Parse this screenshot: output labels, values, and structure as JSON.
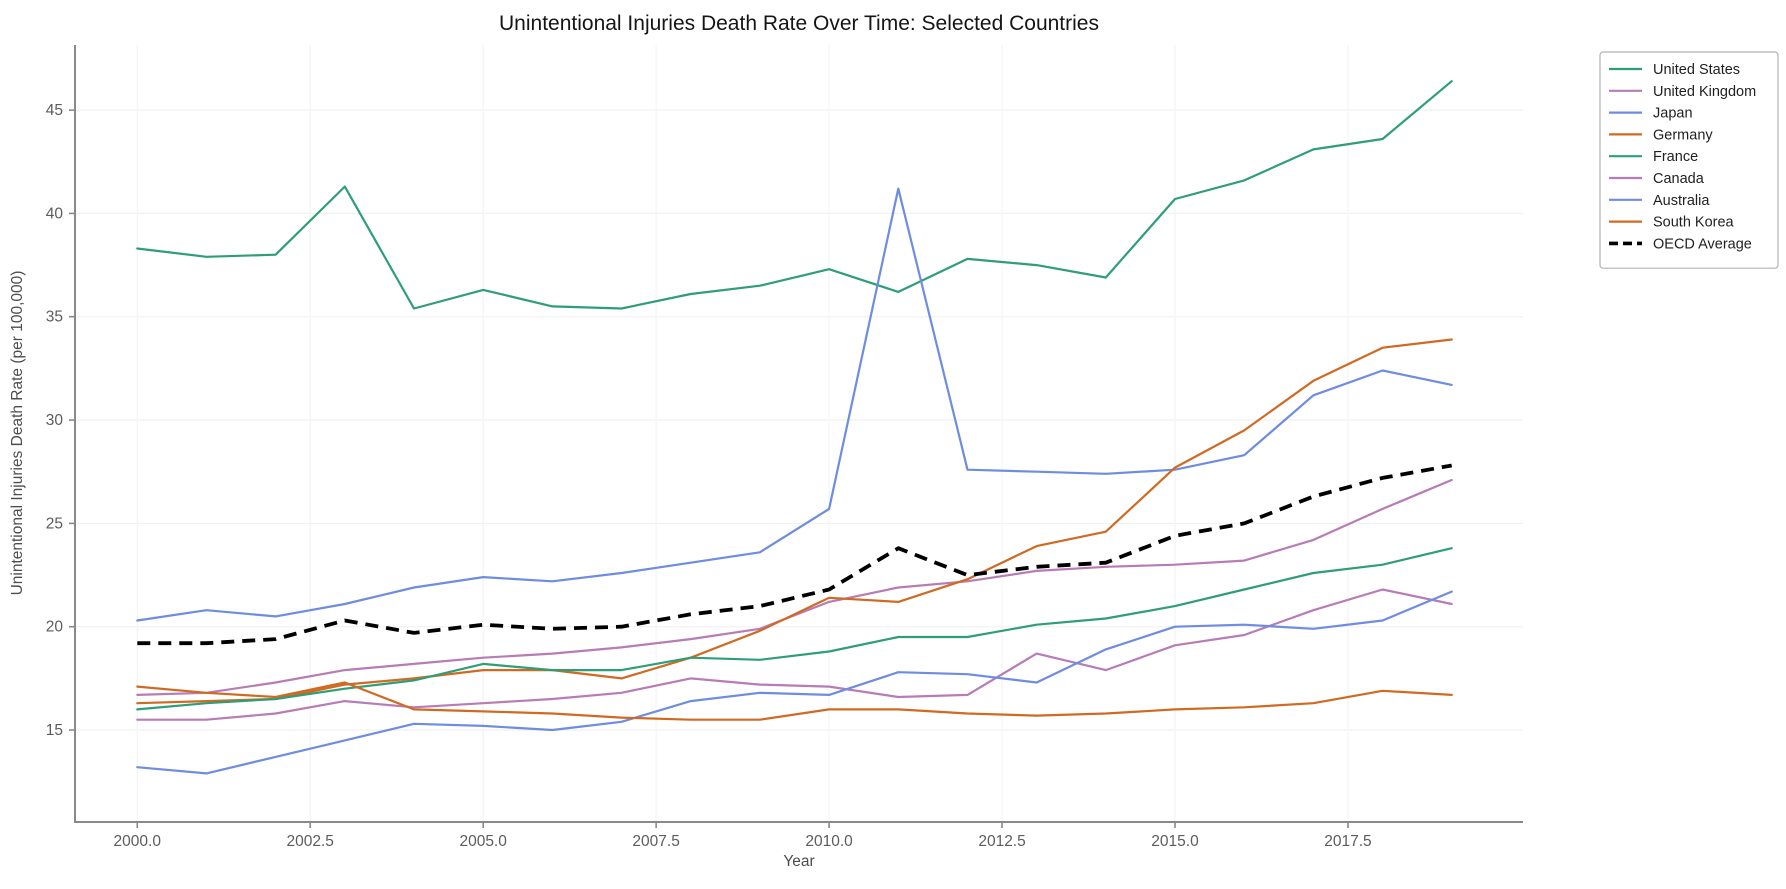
{
  "chart_data": {
    "type": "line",
    "title": "Unintentional Injuries Death Rate Over Time: Selected Countries",
    "xlabel": "Year",
    "ylabel": "Unintentional Injuries Death Rate (per 100,000)",
    "grid": true,
    "legend_position": "upper-right-outside",
    "xlim": [
      1999.1,
      2020.03
    ],
    "ylim": [
      10.55,
      48.15
    ],
    "yticks": [
      15,
      20,
      25,
      30,
      35,
      40,
      45
    ],
    "xticks": {
      "values": [
        2000,
        2002.5,
        2005,
        2007.5,
        2010,
        2012.5,
        2015,
        2017.5
      ],
      "labels": [
        "2000.0",
        "2002.5",
        "2005.0",
        "2007.5",
        "2010.0",
        "2012.5",
        "2015.0",
        "2017.5"
      ]
    },
    "x": [
      2000,
      2001,
      2002,
      2003,
      2004,
      2005,
      2006,
      2007,
      2008,
      2009,
      2010,
      2011,
      2012,
      2013,
      2014,
      2015,
      2016,
      2017,
      2018,
      2019
    ],
    "series": [
      {
        "name": "United States",
        "color": "#2f9e77",
        "dash": false,
        "values": [
          38.3,
          37.9,
          38.0,
          41.3,
          35.4,
          36.3,
          35.5,
          35.4,
          36.1,
          36.5,
          37.3,
          36.2,
          37.8,
          37.5,
          36.9,
          40.7,
          41.6,
          43.1,
          43.6,
          46.4
        ]
      },
      {
        "name": "United Kingdom",
        "color": "#b77cb5",
        "dash": false,
        "values": [
          16.7,
          16.8,
          17.3,
          17.9,
          18.2,
          18.5,
          18.7,
          19.0,
          19.4,
          19.9,
          21.2,
          21.9,
          22.2,
          22.7,
          22.9,
          23.0,
          23.2,
          24.2,
          25.7,
          27.1
        ]
      },
      {
        "name": "Japan",
        "color": "#6e8ce0",
        "dash": false,
        "values": [
          20.3,
          20.8,
          20.5,
          21.1,
          21.9,
          22.4,
          22.2,
          22.6,
          23.1,
          23.6,
          25.7,
          41.2,
          27.6,
          27.5,
          27.4,
          27.6,
          28.3,
          31.2,
          32.4,
          31.7
        ]
      },
      {
        "name": "Germany",
        "color": "#d06a23",
        "dash": false,
        "values": [
          16.3,
          16.4,
          16.5,
          17.2,
          17.5,
          17.9,
          17.9,
          17.5,
          18.5,
          19.8,
          21.4,
          21.2,
          22.3,
          23.9,
          24.6,
          27.7,
          29.5,
          31.9,
          33.5,
          33.9
        ]
      },
      {
        "name": "France",
        "color": "#2f9e77",
        "dash": false,
        "values": [
          16.0,
          16.3,
          16.5,
          17.0,
          17.4,
          18.2,
          17.9,
          17.9,
          18.5,
          18.4,
          18.8,
          19.5,
          19.5,
          20.1,
          20.4,
          21.0,
          21.8,
          22.6,
          23.0,
          23.8
        ]
      },
      {
        "name": "Canada",
        "color": "#b77cb5",
        "dash": false,
        "values": [
          15.5,
          15.5,
          15.8,
          16.4,
          16.1,
          16.3,
          16.5,
          16.8,
          17.5,
          17.2,
          17.1,
          16.6,
          16.7,
          18.7,
          17.9,
          19.1,
          19.6,
          20.8,
          21.8,
          21.1
        ]
      },
      {
        "name": "Australia",
        "color": "#6e8ce0",
        "dash": false,
        "values": [
          13.2,
          12.9,
          13.7,
          14.5,
          15.3,
          15.2,
          15.0,
          15.4,
          16.4,
          16.8,
          16.7,
          17.8,
          17.7,
          17.3,
          18.9,
          20.0,
          20.1,
          19.9,
          20.3,
          21.7
        ]
      },
      {
        "name": "South Korea",
        "color": "#d06a23",
        "dash": false,
        "values": [
          17.1,
          16.8,
          16.6,
          17.3,
          16.0,
          15.9,
          15.8,
          15.6,
          15.5,
          15.5,
          16.0,
          16.0,
          15.8,
          15.7,
          15.8,
          16.0,
          16.1,
          16.3,
          16.9,
          16.7
        ]
      },
      {
        "name": "OECD Average",
        "color": "#000000",
        "dash": true,
        "values": [
          19.2,
          19.2,
          19.4,
          20.3,
          19.7,
          20.1,
          19.9,
          20.0,
          20.6,
          21.0,
          21.8,
          23.8,
          22.5,
          22.9,
          23.1,
          24.4,
          25.0,
          26.3,
          27.2,
          27.8
        ]
      }
    ]
  }
}
